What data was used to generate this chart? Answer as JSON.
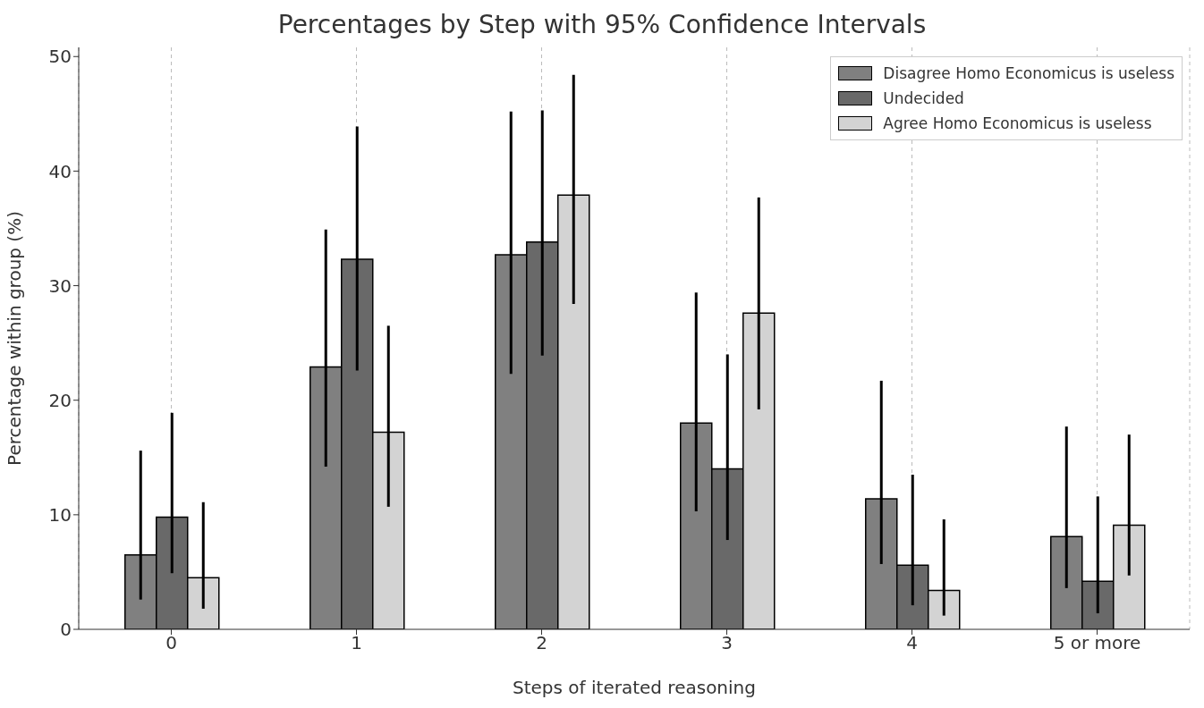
{
  "chart_data": {
    "type": "bar",
    "title": "Percentages by Step with 95% Confidence Intervals",
    "xlabel": "Steps of iterated reasoning",
    "ylabel": "Percentage within group (%)",
    "categories": [
      "0",
      "1",
      "2",
      "3",
      "4",
      "5 or more"
    ],
    "series": [
      {
        "name": "Disagree Homo Economicus is useless",
        "color": "#808080",
        "values": [
          6.5,
          22.9,
          32.7,
          18.0,
          11.4,
          8.1
        ],
        "errors": [
          [
            2.6,
            15.6
          ],
          [
            14.2,
            34.9
          ],
          [
            22.3,
            45.2
          ],
          [
            10.3,
            29.4
          ],
          [
            5.7,
            21.7
          ],
          [
            3.6,
            17.7
          ]
        ]
      },
      {
        "name": "Undecided",
        "color": "#696969",
        "values": [
          9.8,
          32.3,
          33.8,
          14.0,
          5.6,
          4.2
        ],
        "errors": [
          [
            4.9,
            18.9
          ],
          [
            22.6,
            43.9
          ],
          [
            23.9,
            45.3
          ],
          [
            7.8,
            24.0
          ],
          [
            2.1,
            13.5
          ],
          [
            1.4,
            11.6
          ]
        ]
      },
      {
        "name": "Agree Homo Economicus is useless",
        "color": "#d3d3d3",
        "values": [
          4.5,
          17.2,
          37.9,
          27.6,
          3.4,
          9.1
        ],
        "errors": [
          [
            1.8,
            11.1
          ],
          [
            10.7,
            26.5
          ],
          [
            28.4,
            48.4
          ],
          [
            19.2,
            37.7
          ],
          [
            1.2,
            9.6
          ],
          [
            4.7,
            17.0
          ]
        ]
      }
    ],
    "ylim": [
      0,
      50.8
    ],
    "yticks": [
      0,
      10,
      20,
      30,
      40,
      50
    ],
    "grid": "x",
    "legend": "top right"
  }
}
